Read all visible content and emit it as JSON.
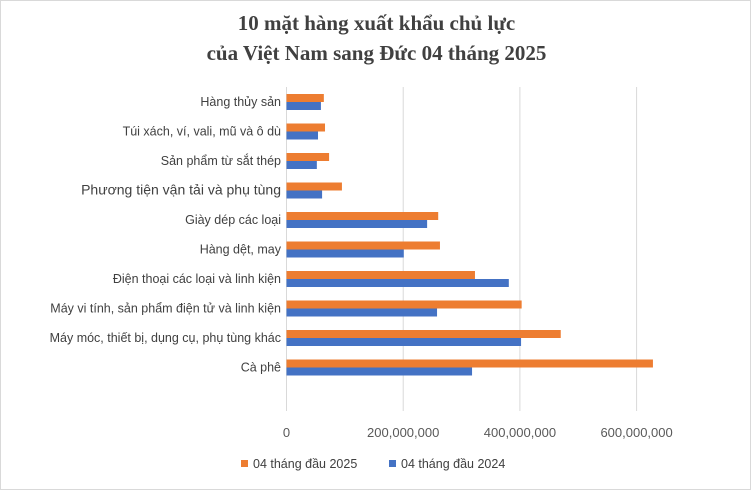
{
  "chart_data": {
    "type": "bar",
    "orientation": "horizontal",
    "title_lines": [
      "10 mặt hàng xuất khẩu chủ lực",
      "của Việt Nam sang Đức 04 tháng 2025"
    ],
    "categories": [
      "Hàng thủy sản",
      "Túi xách, ví, vali, mũ và ô dù",
      "Sản phẩm từ sắt thép",
      "Phương tiện vận tải và phụ tùng",
      "Giày dép các loại",
      "Hàng dệt, may",
      "Điện thoại các loại và linh kiện",
      "Máy vi tính, sản phẩm điện tử và linh kiện",
      "Máy móc, thiết bị, dụng cụ, phụ tùng khác",
      "Cà phê"
    ],
    "series": [
      {
        "name": "04 tháng đầu 2025",
        "color": "#ED7D31",
        "values": [
          64000000,
          66000000,
          73000000,
          95000000,
          260000000,
          263000000,
          323000000,
          403000000,
          470000000,
          628000000
        ]
      },
      {
        "name": "04 tháng đầu 2024",
        "color": "#4472C4",
        "values": [
          59000000,
          54000000,
          52000000,
          61000000,
          241000000,
          201000000,
          381000000,
          258000000,
          402000000,
          318000000
        ]
      }
    ],
    "xlim": [
      0,
      700000000
    ],
    "xticks": [
      0,
      200000000,
      400000000,
      600000000
    ],
    "xtick_labels": [
      "0",
      "200,000,000",
      "400,000,000",
      "600,000,000"
    ],
    "grid": true,
    "legend_position": "bottom"
  }
}
